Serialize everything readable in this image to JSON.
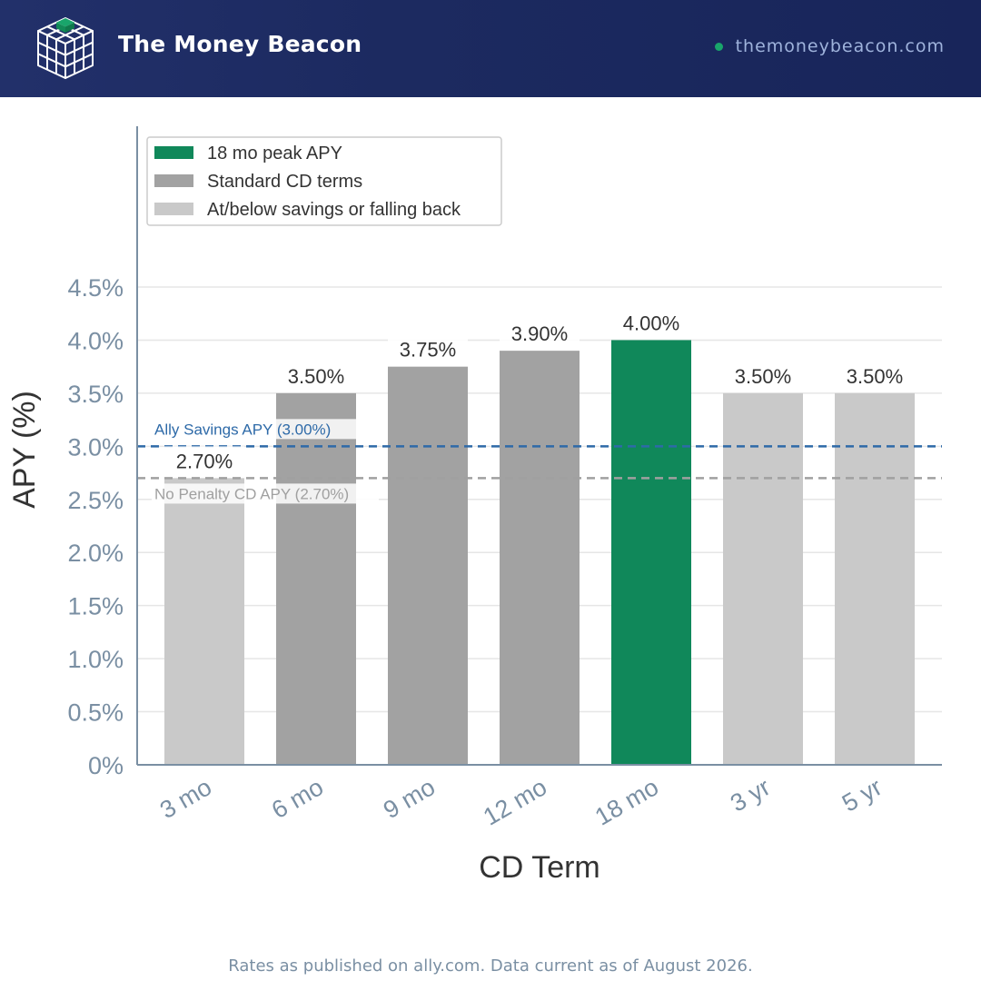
{
  "header": {
    "brand_name": "The Money Beacon",
    "site_url": "themoneybeacon.com",
    "logo_icon": "cube-grid-icon",
    "colors": {
      "background": "#1c2a60",
      "dot": "#19a56b",
      "logo_accent": "#19a56b"
    }
  },
  "footnote": "Rates as published on ally.com. Data current as of August 2026.",
  "chart_data": {
    "type": "bar",
    "xlabel": "CD Term",
    "ylabel": "APY (%)",
    "ylim": [
      0,
      4.5
    ],
    "yticks": [
      0,
      0.5,
      1.0,
      1.5,
      2.0,
      2.5,
      3.0,
      3.5,
      4.0,
      4.5
    ],
    "ytick_labels": [
      "0%",
      "0.5%",
      "1.0%",
      "1.5%",
      "2.0%",
      "2.5%",
      "3.0%",
      "3.5%",
      "4.0%",
      "4.5%"
    ],
    "grid": true,
    "categories": [
      "3 mo",
      "6 mo",
      "9 mo",
      "12 mo",
      "18 mo",
      "3 yr",
      "5 yr"
    ],
    "values": [
      2.7,
      3.5,
      3.75,
      3.9,
      4.0,
      3.5,
      3.5
    ],
    "value_labels": [
      "2.70%",
      "3.50%",
      "3.75%",
      "3.90%",
      "4.00%",
      "3.50%",
      "3.50%"
    ],
    "groups": [
      "below",
      "standard",
      "standard",
      "standard",
      "peak",
      "below",
      "below"
    ],
    "legend": {
      "placement": "top-left",
      "entries": [
        {
          "key": "peak",
          "label": "18 mo peak APY",
          "color": "#10885a"
        },
        {
          "key": "standard",
          "label": "Standard CD terms",
          "color": "#a2a2a2"
        },
        {
          "key": "below",
          "label": "At/below savings or falling back",
          "color": "#c9c9c9"
        }
      ]
    },
    "reference_lines": [
      {
        "label": "Ally Savings APY (3.00%)",
        "value": 3.0,
        "color": "#2e6aa8",
        "style": "dashed"
      },
      {
        "label": "No Penalty CD APY (2.70%)",
        "value": 2.7,
        "color": "#a0a0a0",
        "style": "dashed"
      }
    ],
    "colors": {
      "axis": "#7a8fa3",
      "tick_text": "#7a8fa3",
      "grid": "#e6e6e6",
      "value_text": "#333333",
      "title_text": "#333333"
    }
  }
}
